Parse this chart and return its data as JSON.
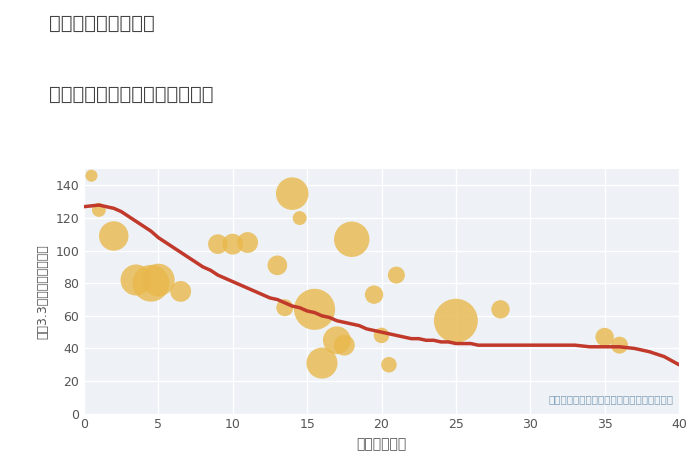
{
  "title_line1": "奈良県桜井市大西の",
  "title_line2": "築年数別中古マンション坪単価",
  "xlabel": "築年数（年）",
  "ylabel": "坪（3.3㎡）単価（万円）",
  "annotation": "円の大きさは、取引のあった物件面積を示す",
  "bg_color": "#eef2f7",
  "scatter_color": "#e8b84b",
  "line_color": "#c0392b",
  "text_color": "#7a9ab5",
  "title_color": "#444444",
  "tick_color": "#555555",
  "label_color": "#555555",
  "xlim": [
    0,
    40
  ],
  "ylim": [
    0,
    150
  ],
  "xticks": [
    0,
    5,
    10,
    15,
    20,
    25,
    30,
    35,
    40
  ],
  "yticks": [
    0,
    20,
    40,
    60,
    80,
    100,
    120,
    140
  ],
  "scatter_x": [
    0.5,
    1.0,
    2.0,
    3.5,
    4.5,
    5.0,
    6.5,
    9.0,
    10.0,
    11.0,
    13.0,
    13.5,
    14.0,
    14.5,
    15.5,
    16.0,
    17.0,
    17.5,
    18.0,
    19.5,
    20.0,
    20.5,
    21.0,
    25.0,
    28.0,
    35.0,
    36.0
  ],
  "scatter_y": [
    146,
    125,
    109,
    82,
    80,
    82,
    75,
    104,
    104,
    105,
    91,
    65,
    135,
    120,
    64,
    31,
    45,
    42,
    107,
    73,
    48,
    30,
    85,
    57,
    64,
    47,
    42
  ],
  "scatter_size": [
    30,
    40,
    180,
    200,
    280,
    220,
    90,
    80,
    90,
    90,
    80,
    60,
    220,
    40,
    350,
    200,
    160,
    90,
    260,
    70,
    50,
    50,
    60,
    400,
    70,
    70,
    60
  ],
  "trend_x": [
    0,
    0.5,
    1,
    1.5,
    2,
    2.5,
    3,
    3.5,
    4,
    4.5,
    5,
    5.5,
    6,
    6.5,
    7,
    7.5,
    8,
    8.5,
    9,
    9.5,
    10,
    10.5,
    11,
    11.5,
    12,
    12.5,
    13,
    13.5,
    14,
    14.5,
    15,
    15.5,
    16,
    16.5,
    17,
    17.5,
    18,
    18.5,
    19,
    19.5,
    20,
    20.5,
    21,
    21.5,
    22,
    22.5,
    23,
    23.5,
    24,
    24.5,
    25,
    25.5,
    26,
    26.5,
    27,
    27.5,
    28,
    28.5,
    29,
    29.5,
    30,
    31,
    32,
    33,
    34,
    35,
    36,
    37,
    38,
    39,
    40
  ],
  "trend_y": [
    127,
    127.5,
    128,
    127,
    126,
    124,
    121,
    118,
    115,
    112,
    108,
    105,
    102,
    99,
    96,
    93,
    90,
    88,
    85,
    83,
    81,
    79,
    77,
    75,
    73,
    71,
    70,
    68,
    66,
    65,
    63,
    62,
    60,
    59,
    57,
    56,
    55,
    54,
    52,
    51,
    50,
    49,
    48,
    47,
    46,
    46,
    45,
    45,
    44,
    44,
    43,
    43,
    43,
    42,
    42,
    42,
    42,
    42,
    42,
    42,
    42,
    42,
    42,
    42,
    41,
    41,
    41,
    40,
    38,
    35,
    30
  ]
}
